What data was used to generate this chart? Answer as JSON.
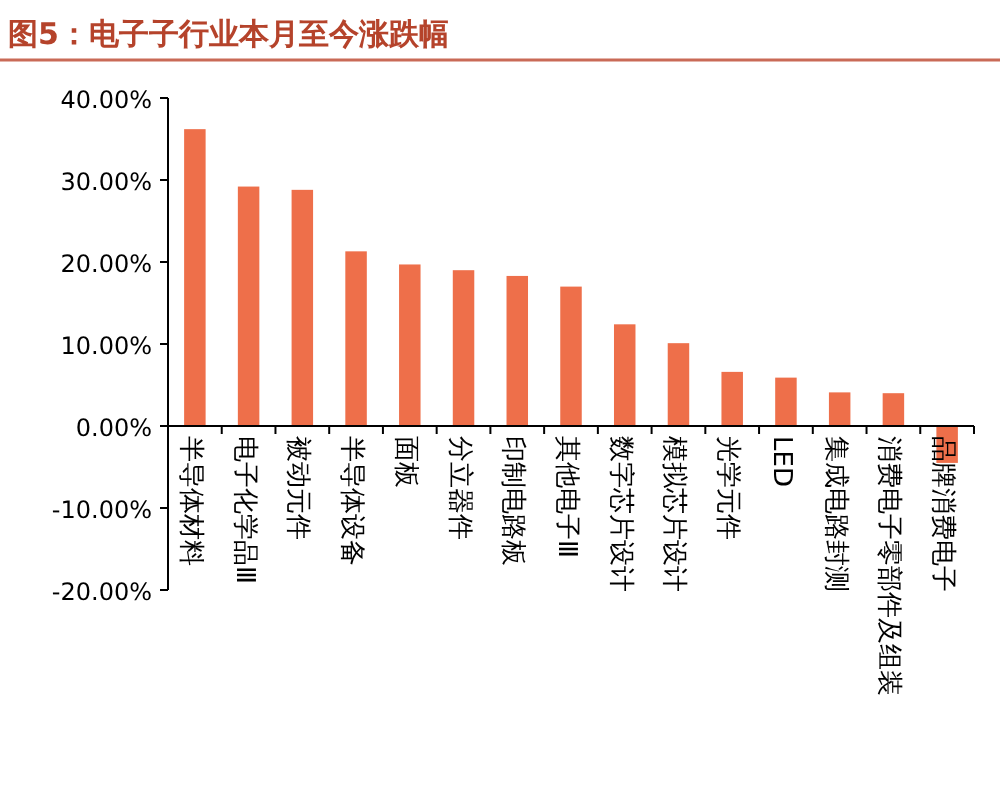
{
  "chart_data": {
    "type": "bar",
    "title": "图5：电子子行业本月至今涨跌幅",
    "categories": [
      "半导体材料",
      "电子化学品Ⅲ",
      "被动元件",
      "半导体设备",
      "面板",
      "分立器件",
      "印制电路板",
      "其他电子Ⅲ",
      "数字芯片设计",
      "模拟芯片设计",
      "光学元件",
      "LED",
      "集成电路封测",
      "消费电子零部件及组装",
      "品牌消费电子"
    ],
    "values": [
      36.2,
      29.2,
      28.8,
      21.3,
      19.7,
      19.0,
      18.3,
      17.0,
      12.4,
      10.1,
      6.6,
      5.9,
      4.1,
      4.0,
      -4.5
    ],
    "color": "#ee6f4a",
    "ylim": [
      -20,
      40
    ],
    "yticks": [
      {
        "value": -20,
        "label": "-20.00%"
      },
      {
        "value": -10,
        "label": "-10.00%"
      },
      {
        "value": 0,
        "label": "0.00%"
      },
      {
        "value": 10,
        "label": "10.00%"
      },
      {
        "value": 20,
        "label": "20.00%"
      },
      {
        "value": 30,
        "label": "30.00%"
      },
      {
        "value": 40,
        "label": "40.00%"
      }
    ],
    "grid": false
  }
}
